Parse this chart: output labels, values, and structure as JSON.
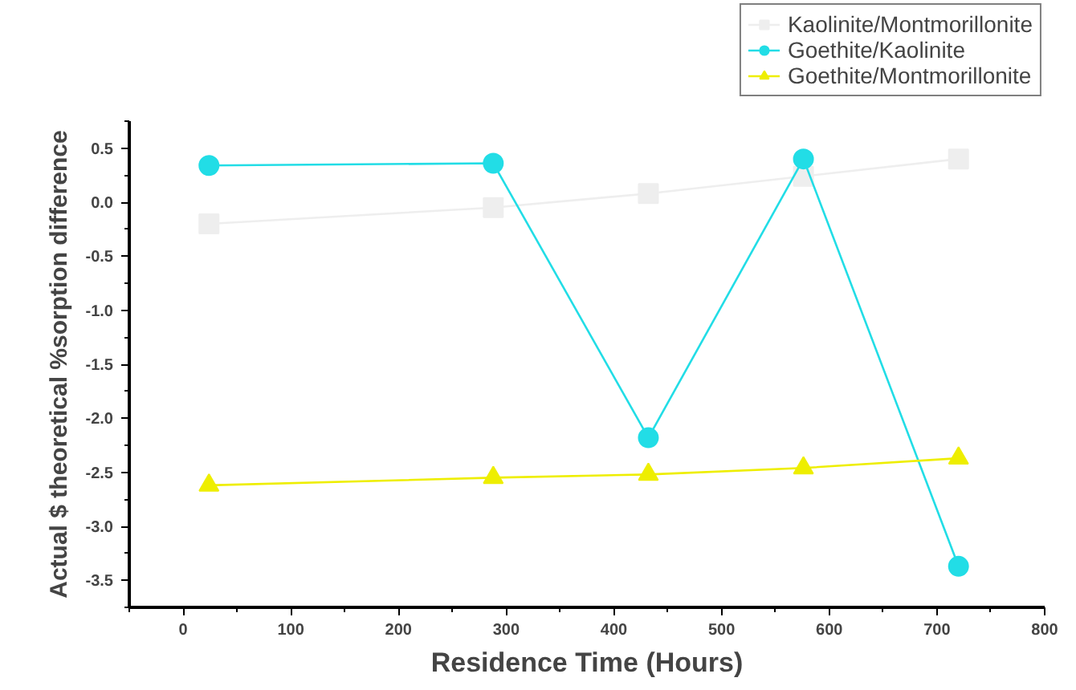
{
  "chart_data": {
    "type": "line",
    "xlabel": "Residence Time (Hours)",
    "ylabel": "Actual $ theoretical %sorption difference",
    "x": [
      24,
      288,
      432,
      576,
      720
    ],
    "series": [
      {
        "name": "Kaolinite/Montmorillonite",
        "color": "#eeeeee",
        "marker": "square",
        "values": [
          -0.2,
          -0.05,
          0.08,
          0.24,
          0.4
        ]
      },
      {
        "name": "Goethite/Kaolinite",
        "color": "#22dde6",
        "marker": "circle",
        "values": [
          0.34,
          0.36,
          -2.18,
          0.4,
          -3.37
        ]
      },
      {
        "name": "Goethite/Montmorillonite",
        "color": "#eeee00",
        "marker": "triangle",
        "values": [
          -2.62,
          -2.55,
          -2.52,
          -2.46,
          -2.37
        ]
      }
    ],
    "xlim": [
      -50,
      800
    ],
    "xticks": [
      0,
      100,
      200,
      300,
      400,
      500,
      600,
      700,
      800
    ],
    "ylim": [
      -3.75,
      0.75
    ],
    "yticks": [
      {
        "value": -3.5,
        "label": "-3.5"
      },
      {
        "value": -3.0,
        "label": "-3.0"
      },
      {
        "value": -2.5,
        "label": "-2.5"
      },
      {
        "value": -2.0,
        "label": "-2.0"
      },
      {
        "value": -1.5,
        "label": "-1.5"
      },
      {
        "value": -1.0,
        "label": "-1.0"
      },
      {
        "value": -0.5,
        "label": "-0.5"
      },
      {
        "value": 0.0,
        "label": "0.0"
      },
      {
        "value": 0.5,
        "label": "0.5"
      }
    ],
    "grid": false,
    "legend": "top right",
    "line_style": "solid"
  }
}
